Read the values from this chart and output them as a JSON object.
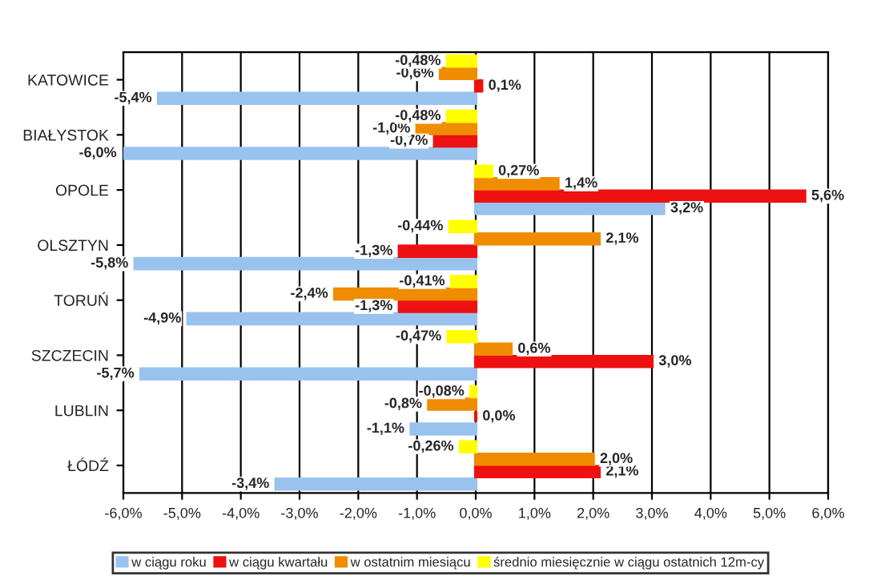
{
  "chart_data": {
    "type": "bar",
    "orientation": "horizontal",
    "categories": [
      "KATOWICE",
      "BIAŁYSTOK",
      "OPOLE",
      "OLSZTYN",
      "TORUŃ",
      "SZCZECIN",
      "LUBLIN",
      "ŁÓDŹ"
    ],
    "series": [
      {
        "name": "w ciągu roku",
        "color": "#99c3ee",
        "values": [
          -5.4,
          -6.0,
          3.2,
          -5.8,
          -4.9,
          -5.7,
          -1.1,
          -3.4
        ],
        "value_labels": [
          "-5,4%",
          "-6,0%",
          "3,2%",
          "-5,8%",
          "-4,9%",
          "-5,7%",
          "-1,1%",
          "-3,4%"
        ]
      },
      {
        "name": "w ciągu kwartału",
        "color": "#ee1111",
        "values": [
          0.1,
          -0.7,
          5.6,
          -1.3,
          -1.3,
          3.0,
          0.0,
          2.1
        ],
        "value_labels": [
          "0,1%",
          "-0,7%",
          "5,6%",
          "-1,3%",
          "-1,3%",
          "3,0%",
          "0,0%",
          "2,1%"
        ]
      },
      {
        "name": "w ostatnim miesiącu",
        "color": "#f08c00",
        "values": [
          -0.6,
          -1.0,
          1.4,
          2.1,
          -2.4,
          0.6,
          -0.8,
          2.0
        ],
        "value_labels": [
          "-0,6%",
          "-1,0%",
          "1,4%",
          "2,1%",
          "-2,4%",
          "0,6%",
          "-0,8%",
          "2,0%"
        ]
      },
      {
        "name": "średnio miesięcznie w ciągu ostatnich 12m-cy",
        "color": "#ffff00",
        "values": [
          -0.48,
          -0.48,
          0.27,
          -0.44,
          -0.41,
          -0.47,
          -0.08,
          -0.26
        ],
        "value_labels": [
          "-0,48%",
          "-0,48%",
          "0,27%",
          "-0,44%",
          "-0,41%",
          "-0,47%",
          "-0,08%",
          "-0,26%"
        ]
      }
    ],
    "xlim": [
      -6.0,
      6.0
    ],
    "xticks": [
      {
        "value": -6.0,
        "label": "-6,0%"
      },
      {
        "value": -5.0,
        "label": "-5,0%"
      },
      {
        "value": -4.0,
        "label": "-4,0%"
      },
      {
        "value": -3.0,
        "label": "-3,0%"
      },
      {
        "value": -2.0,
        "label": "-2,0%"
      },
      {
        "value": -1.0,
        "label": "-1,0%"
      },
      {
        "value": 0.0,
        "label": "0,0%"
      },
      {
        "value": 1.0,
        "label": "1,0%"
      },
      {
        "value": 2.0,
        "label": "2,0%"
      },
      {
        "value": 3.0,
        "label": "3,0%"
      },
      {
        "value": 4.0,
        "label": "4,0%"
      },
      {
        "value": 5.0,
        "label": "5,0%"
      },
      {
        "value": 6.0,
        "label": "6,0%"
      }
    ],
    "grid": "x",
    "legend": "bottom"
  }
}
